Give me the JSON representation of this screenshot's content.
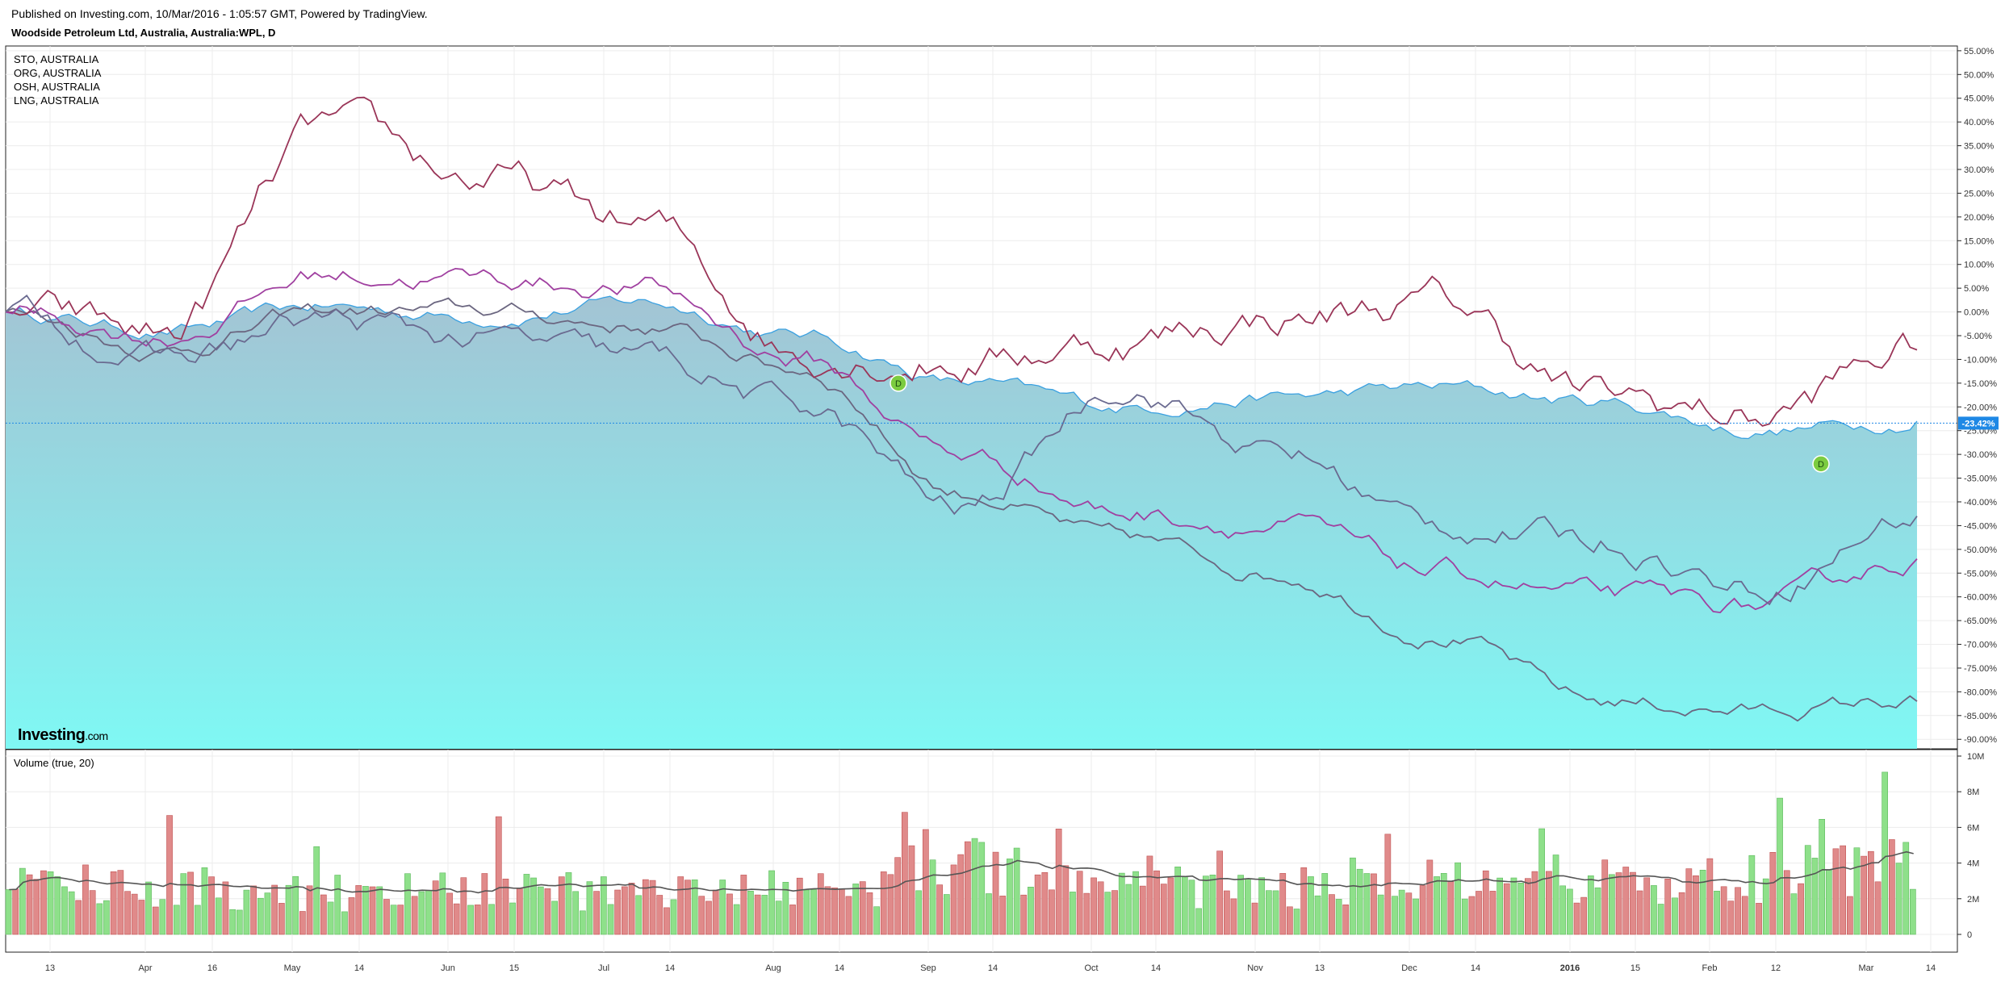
{
  "header": {
    "published": "Published on Investing.com, 10/Mar/2016 - 1:05:57 GMT, Powered by TradingView.",
    "title": "Woodside Petroleum Ltd, Australia, Australia:WPL, D"
  },
  "legend": [
    "STO, AUSTRALIA",
    "ORG, AUSTRALIA",
    "OSH, AUSTRALIA",
    "LNG, AUSTRALIA"
  ],
  "logo": {
    "main": "Investing",
    "suffix": ".com"
  },
  "volume_label": "Volume (true, 20)",
  "colors": {
    "area_top": "#a3c4d4",
    "area_bottom": "#7ff8f4",
    "area_line": "#3aa0e0",
    "sto": "#6b6680",
    "org": "#9a3558",
    "osh": "#a040a0",
    "lng": "#6a6a90",
    "vol_up": "#8ee08a",
    "vol_down": "#e08a8a",
    "vol_ma": "#555555",
    "last_badge": "#1e88e5"
  },
  "chart_data": [
    {
      "type": "line",
      "title": "Woodside Petroleum Ltd, Australia, Australia:WPL, D",
      "y_unit": "%",
      "ylim": [
        -92,
        56
      ],
      "y_ticks": [
        "55.00%",
        "50.00%",
        "45.00%",
        "40.00%",
        "35.00%",
        "30.00%",
        "25.00%",
        "20.00%",
        "15.00%",
        "10.00%",
        "5.00%",
        "0.00%",
        "-5.00%",
        "-10.00%",
        "-15.00%",
        "-20.00%",
        "-25.00%",
        "-30.00%",
        "-35.00%",
        "-40.00%",
        "-45.00%",
        "-50.00%",
        "-55.00%",
        "-60.00%",
        "-65.00%",
        "-70.00%",
        "-75.00%",
        "-80.00%",
        "-85.00%",
        "-90.00%"
      ],
      "x_ticks": [
        "13",
        "Apr",
        "16",
        "May",
        "14",
        "Jun",
        "15",
        "Jul",
        "14",
        "Aug",
        "14",
        "Sep",
        "14",
        "Oct",
        "14",
        "Nov",
        "13",
        "Dec",
        "14",
        "2016",
        "15",
        "Feb",
        "12",
        "Mar",
        "14"
      ],
      "last_value_label": "-23.42%",
      "markers": [
        "D",
        "D"
      ],
      "series": [
        {
          "name": "WPL",
          "style": "area",
          "x": [
            "Mar 2015",
            "Apr",
            "May",
            "Jun",
            "Jul",
            "Aug",
            "Sep",
            "Oct",
            "Nov",
            "Dec",
            "Jan 2016",
            "Feb",
            "Mar 2016"
          ],
          "values": [
            0,
            -4,
            1,
            -1,
            2,
            -5,
            -15,
            -20,
            -18,
            -16,
            -19,
            -25,
            -23
          ]
        },
        {
          "name": "STO, AUSTRALIA",
          "x": [
            "Mar 2015",
            "Apr",
            "May",
            "Jun",
            "Jul",
            "Aug",
            "Sep",
            "Oct",
            "Nov",
            "Dec",
            "Jan 2016",
            "Feb",
            "Mar 2016"
          ],
          "values": [
            0,
            -8,
            0,
            0,
            -3,
            -12,
            -38,
            -48,
            -55,
            -68,
            -82,
            -84,
            -82
          ]
        },
        {
          "name": "ORG, AUSTRALIA",
          "x": [
            "Mar 2015",
            "Apr",
            "May",
            "Jun",
            "Jul",
            "Aug",
            "Sep",
            "Oct",
            "Nov",
            "Dec",
            "Jan 2016",
            "Feb",
            "Mar 2016"
          ],
          "values": [
            0,
            -5,
            38,
            28,
            18,
            -8,
            -10,
            -6,
            -1,
            2,
            -18,
            -22,
            -8
          ]
        },
        {
          "name": "OSH, AUSTRALIA",
          "x": [
            "Mar 2015",
            "Apr",
            "May",
            "Jun",
            "Jul",
            "Aug",
            "Sep",
            "Oct",
            "Nov",
            "Dec",
            "Jan 2016",
            "Feb",
            "Mar 2016"
          ],
          "values": [
            0,
            -5,
            8,
            7,
            5,
            -10,
            -30,
            -42,
            -45,
            -55,
            -60,
            -62,
            -52
          ]
        },
        {
          "name": "LNG, AUSTRALIA",
          "x": [
            "Mar 2015",
            "Apr",
            "May",
            "Jun",
            "Jul",
            "Aug",
            "Sep",
            "Oct",
            "Nov",
            "Dec",
            "Jan 2016",
            "Feb",
            "Mar 2016"
          ],
          "values": [
            0,
            -10,
            -2,
            -6,
            -10,
            -20,
            -42,
            -15,
            -30,
            -45,
            -48,
            -58,
            -43
          ]
        }
      ]
    },
    {
      "type": "bar",
      "title": "Volume (true, 20)",
      "ylim": [
        0,
        10000000
      ],
      "y_ticks": [
        "10M",
        "8M",
        "6M",
        "4M",
        "2M",
        "0"
      ],
      "bars_per_month": 21,
      "months": [
        "Mar",
        "Apr",
        "May",
        "Jun",
        "Jul",
        "Aug",
        "Sep",
        "Oct",
        "Nov",
        "Dec",
        "Jan",
        "Feb",
        "Mar"
      ],
      "monthly_avg_volume_m": [
        2.8,
        2.4,
        2.3,
        2.4,
        2.2,
        2.6,
        3.6,
        3.2,
        2.5,
        2.8,
        2.4,
        3.0,
        3.6
      ],
      "ma_length": 20
    }
  ]
}
